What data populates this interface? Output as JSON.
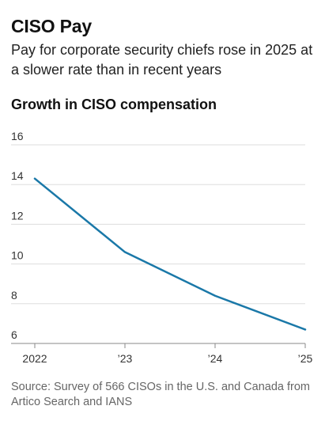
{
  "title": "CISO Pay",
  "subtitle": "Pay for corporate security chiefs rose in 2025 at a slower rate than in recent years",
  "source": "Source: Survey of 566 CISOs in the U.S. and Canada from Artico Search and IANS",
  "chart_data": {
    "type": "line",
    "title": "Growth in CISO compensation",
    "xlabel": "",
    "ylabel": "",
    "categories": [
      "2022",
      "’23",
      "’24",
      "’25"
    ],
    "x": [
      2022,
      2023,
      2024,
      2025
    ],
    "ylim": [
      6,
      16
    ],
    "yticks": [
      6,
      8,
      10,
      12,
      14,
      16
    ],
    "grid": true,
    "legend": "none",
    "series": [
      {
        "values": [
          14.3,
          10.6,
          8.4,
          6.7
        ],
        "color": "#1a78a8"
      }
    ],
    "colors": {
      "line": "#1a78a8",
      "grid": "#dddddd",
      "axis": "#888888"
    }
  }
}
